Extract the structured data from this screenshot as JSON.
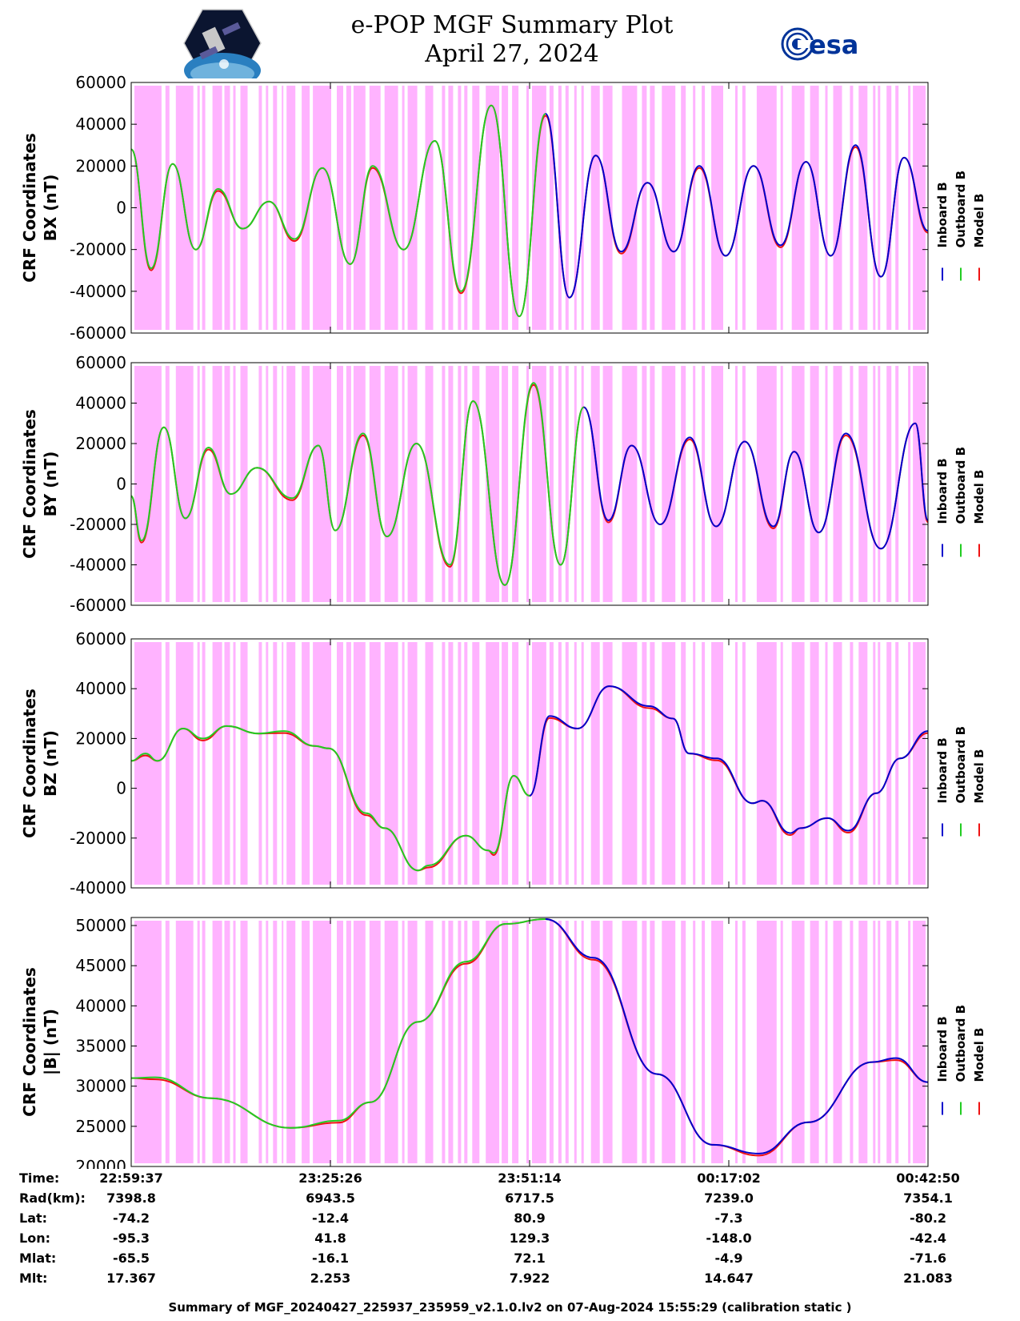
{
  "header": {
    "title_line1": "e-POP MGF Summary Plot",
    "title_line2": "April 27, 2024",
    "logo_left_name": "cassiope-mission-logo",
    "logo_right_text": "esa"
  },
  "colors": {
    "inboard": "#0000cc",
    "outboard": "#22cc22",
    "model": "#ee1111",
    "shading": "#ffb3ff"
  },
  "legend": [
    "Inboard B",
    "Outboard B",
    "Model B"
  ],
  "chart_data": [
    {
      "type": "line",
      "panel": "bx",
      "ylabel_line1": "CRF Coordinates",
      "ylabel_line2": "BX (nT)",
      "ylim": [
        -60000,
        60000
      ],
      "yticks": [
        "60000",
        "40000",
        "20000",
        "0",
        "-20000",
        "-40000",
        "-60000"
      ],
      "series_switch_x": 0.52,
      "x": [
        0.0,
        0.025,
        0.052,
        0.081,
        0.109,
        0.14,
        0.173,
        0.205,
        0.24,
        0.275,
        0.303,
        0.342,
        0.381,
        0.414,
        0.452,
        0.487,
        0.52,
        0.55,
        0.583,
        0.615,
        0.648,
        0.681,
        0.713,
        0.746,
        0.781,
        0.815,
        0.847,
        0.878,
        0.909,
        0.941,
        0.97,
        1.0
      ],
      "values": [
        28000,
        -29000,
        21000,
        -20000,
        9000,
        -10000,
        3000,
        -15000,
        19000,
        -27000,
        20000,
        -20000,
        32000,
        -40000,
        49000,
        -52000,
        45000,
        -43000,
        25000,
        -21000,
        12000,
        -21000,
        20000,
        -23000,
        20000,
        -18000,
        22000,
        -23000,
        30000,
        -33000,
        24000,
        -11000
      ]
    },
    {
      "type": "line",
      "panel": "by",
      "ylabel_line1": "CRF Coordinates",
      "ylabel_line2": "BY (nT)",
      "ylim": [
        -60000,
        60000
      ],
      "yticks": [
        "60000",
        "40000",
        "20000",
        "0",
        "-20000",
        "-40000",
        "-60000"
      ],
      "series_switch_x": 0.56,
      "x": [
        0.0,
        0.013,
        0.041,
        0.068,
        0.097,
        0.125,
        0.158,
        0.202,
        0.235,
        0.256,
        0.291,
        0.321,
        0.358,
        0.4,
        0.429,
        0.469,
        0.505,
        0.539,
        0.568,
        0.599,
        0.628,
        0.664,
        0.701,
        0.734,
        0.77,
        0.806,
        0.832,
        0.863,
        0.897,
        0.941,
        0.984,
        1.0
      ],
      "values": [
        -6000,
        -28000,
        28000,
        -17000,
        18000,
        -5000,
        8000,
        -7000,
        19000,
        -23000,
        25000,
        -26000,
        20000,
        -40000,
        41000,
        -50000,
        50000,
        -40000,
        38000,
        -18000,
        19000,
        -20000,
        23000,
        -21000,
        21000,
        -21000,
        16000,
        -24000,
        25000,
        -32000,
        30000,
        -18000
      ]
    },
    {
      "type": "line",
      "panel": "bz",
      "ylabel_line1": "CRF Coordinates",
      "ylabel_line2": "BZ (nT)",
      "ylim": [
        -40000,
        60000
      ],
      "yticks": [
        "60000",
        "40000",
        "20000",
        "0",
        "-20000",
        "-40000"
      ],
      "series_switch_x": 0.5,
      "x": [
        0.0,
        0.018,
        0.033,
        0.065,
        0.09,
        0.12,
        0.16,
        0.192,
        0.23,
        0.248,
        0.295,
        0.318,
        0.36,
        0.373,
        0.42,
        0.448,
        0.455,
        0.48,
        0.5,
        0.525,
        0.56,
        0.6,
        0.65,
        0.68,
        0.7,
        0.735,
        0.78,
        0.792,
        0.827,
        0.84,
        0.874,
        0.9,
        0.935,
        0.965,
        1.0
      ],
      "values": [
        11000,
        14000,
        11000,
        24000,
        20000,
        25000,
        22000,
        23000,
        17000,
        16000,
        -10000,
        -16000,
        -33000,
        -31000,
        -19000,
        -25000,
        -26000,
        5000,
        -3000,
        29000,
        24000,
        41000,
        33000,
        28000,
        14000,
        12000,
        -6000,
        -5000,
        -18000,
        -16000,
        -12000,
        -17000,
        -2000,
        12000,
        23000
      ]
    },
    {
      "type": "line",
      "panel": "btot",
      "ylabel_line1": "CRF Coordinates",
      "ylabel_line2": "|B| (nT)",
      "ylim": [
        20000,
        51000
      ],
      "yticks": [
        "50000",
        "45000",
        "40000",
        "35000",
        "30000",
        "25000",
        "20000"
      ],
      "series_switch_x": 0.52,
      "x": [
        0.0,
        0.03,
        0.1,
        0.2,
        0.26,
        0.3,
        0.36,
        0.42,
        0.47,
        0.52,
        0.58,
        0.66,
        0.73,
        0.788,
        0.85,
        0.93,
        0.96,
        1.0
      ],
      "values": [
        31000,
        31100,
        28500,
        24800,
        25700,
        28000,
        38000,
        45500,
        50200,
        50800,
        46000,
        31500,
        22700,
        21600,
        25500,
        33000,
        33500,
        30500
      ]
    }
  ],
  "shading_bands": [
    [
      0.004,
      0.038
    ],
    [
      0.043,
      0.048
    ],
    [
      0.056,
      0.078
    ],
    [
      0.083,
      0.086
    ],
    [
      0.089,
      0.093
    ],
    [
      0.102,
      0.114
    ],
    [
      0.117,
      0.124
    ],
    [
      0.128,
      0.131
    ],
    [
      0.137,
      0.146
    ],
    [
      0.16,
      0.164
    ],
    [
      0.169,
      0.172
    ],
    [
      0.178,
      0.183
    ],
    [
      0.189,
      0.191
    ],
    [
      0.195,
      0.206
    ],
    [
      0.214,
      0.224
    ],
    [
      0.228,
      0.251
    ],
    [
      0.258,
      0.266
    ],
    [
      0.27,
      0.276
    ],
    [
      0.279,
      0.294
    ],
    [
      0.299,
      0.313
    ],
    [
      0.318,
      0.335
    ],
    [
      0.34,
      0.343
    ],
    [
      0.347,
      0.359
    ],
    [
      0.369,
      0.379
    ],
    [
      0.39,
      0.394
    ],
    [
      0.398,
      0.404
    ],
    [
      0.41,
      0.414
    ],
    [
      0.418,
      0.422
    ],
    [
      0.428,
      0.437
    ],
    [
      0.445,
      0.462
    ],
    [
      0.465,
      0.473
    ],
    [
      0.478,
      0.486
    ],
    [
      0.496,
      0.499
    ],
    [
      0.503,
      0.521
    ],
    [
      0.525,
      0.53
    ],
    [
      0.536,
      0.54
    ],
    [
      0.545,
      0.549
    ],
    [
      0.556,
      0.559
    ],
    [
      0.565,
      0.568
    ],
    [
      0.577,
      0.588
    ],
    [
      0.592,
      0.604
    ],
    [
      0.616,
      0.635
    ],
    [
      0.641,
      0.647
    ],
    [
      0.651,
      0.657
    ],
    [
      0.666,
      0.683
    ],
    [
      0.69,
      0.696
    ],
    [
      0.705,
      0.708
    ],
    [
      0.716,
      0.72
    ],
    [
      0.728,
      0.743
    ],
    [
      0.758,
      0.761
    ],
    [
      0.767,
      0.771
    ],
    [
      0.785,
      0.81
    ],
    [
      0.815,
      0.818
    ],
    [
      0.829,
      0.845
    ],
    [
      0.852,
      0.863
    ],
    [
      0.871,
      0.874
    ],
    [
      0.881,
      0.892
    ],
    [
      0.902,
      0.906
    ],
    [
      0.913,
      0.924
    ],
    [
      0.931,
      0.934
    ],
    [
      0.937,
      0.94
    ],
    [
      0.948,
      0.954
    ],
    [
      0.959,
      0.963
    ],
    [
      0.975,
      0.978
    ],
    [
      0.981,
      0.997
    ]
  ],
  "time_ticks": [
    "22:59:37",
    "23:25:26",
    "23:51:14",
    "00:17:02",
    "00:42:50"
  ],
  "info_table": {
    "labels": [
      "Time:",
      "Rad(km):",
      "Lat:",
      "Lon:",
      "Mlat:",
      "Mlt:"
    ],
    "columns": [
      [
        "22:59:37",
        "7398.8",
        "-74.2",
        "-95.3",
        "-65.5",
        "17.367"
      ],
      [
        "23:25:26",
        "6943.5",
        "-12.4",
        "41.8",
        "-16.1",
        "2.253"
      ],
      [
        "23:51:14",
        "6717.5",
        "80.9",
        "129.3",
        "72.1",
        "7.922"
      ],
      [
        "00:17:02",
        "7239.0",
        "-7.3",
        "-148.0",
        "-4.9",
        "14.647"
      ],
      [
        "00:42:50",
        "7354.1",
        "-80.2",
        "-42.4",
        "-71.6",
        "21.083"
      ]
    ]
  },
  "footer": "Summary of MGF_20240427_225937_235959_v2.1.0.lv2 on 07-Aug-2024 15:55:29 (calibration static )"
}
